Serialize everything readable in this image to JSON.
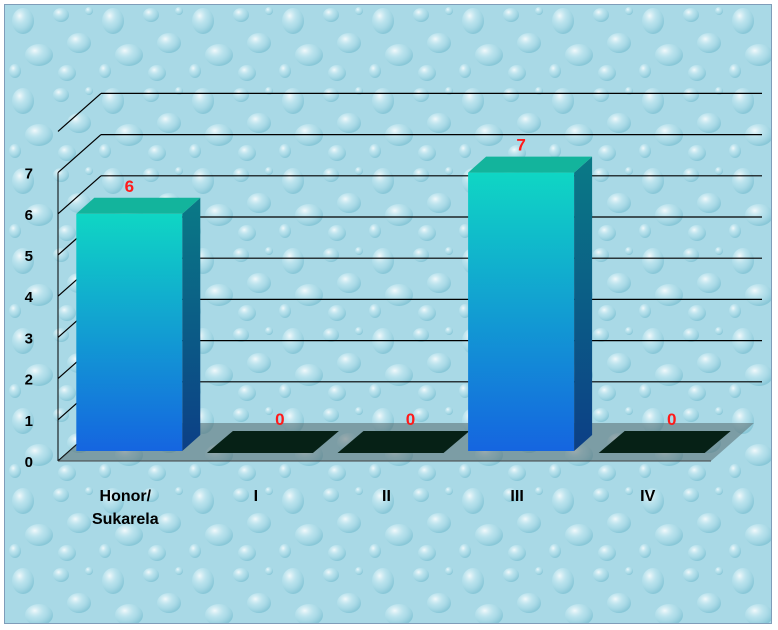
{
  "chart_data": {
    "type": "bar",
    "categories": [
      "Honor/\nSukarela",
      "I",
      "II",
      "III",
      "IV"
    ],
    "values": [
      6,
      0,
      0,
      7,
      0
    ],
    "data_labels": [
      "6",
      "0",
      "0",
      "7",
      "0"
    ],
    "y_ticks": [
      "0",
      "1",
      "2",
      "3",
      "4",
      "5",
      "6",
      "7"
    ],
    "ylim": [
      0,
      8
    ],
    "grid": true,
    "legend": "none",
    "title": "",
    "xlabel": "",
    "ylabel": "",
    "colors": {
      "bar_top": "#0fd6c4",
      "bar_bottom": "#1565e0",
      "bar_side": "#0c3f86",
      "bar_cap": "#13b49c",
      "empty_fill": "#062116",
      "label": "#ff1a1a",
      "background": "#a9d9e6"
    }
  }
}
